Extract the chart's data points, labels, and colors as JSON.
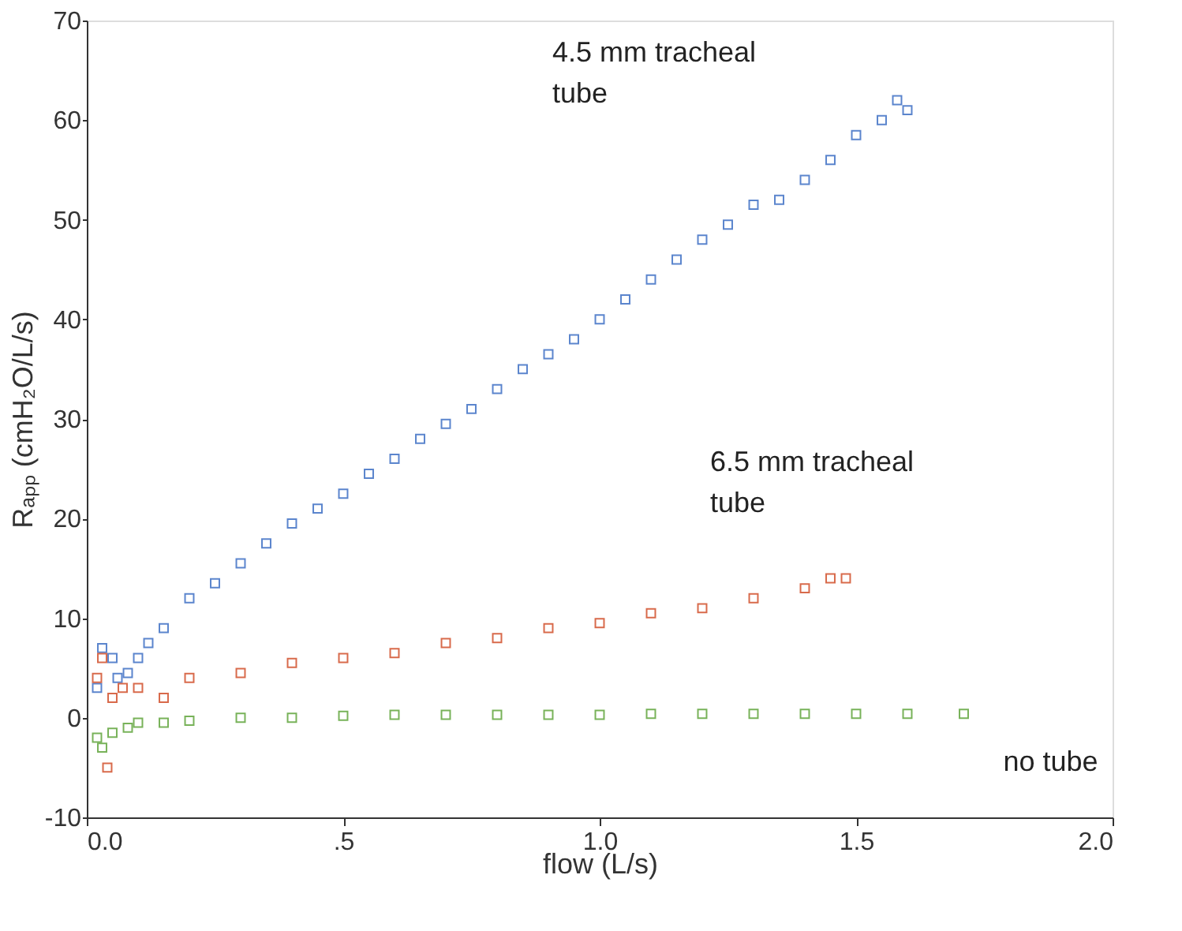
{
  "chart_data": {
    "type": "scatter",
    "xlabel": "flow (L/s)",
    "ylabel": "Rₐₚₚ (cmH₂O/L/s)",
    "xlim": [
      0,
      2
    ],
    "ylim": [
      -10,
      70
    ],
    "xticks": [
      {
        "value": 0,
        "label": "0.0"
      },
      {
        "value": 0.5,
        "label": ".5"
      },
      {
        "value": 1,
        "label": "1.0"
      },
      {
        "value": 1.5,
        "label": "1.5"
      },
      {
        "value": 2,
        "label": "2.0"
      }
    ],
    "yticks": [
      -10,
      0,
      10,
      20,
      30,
      40,
      50,
      60,
      70
    ],
    "grid": false,
    "legend": false,
    "marker": "square",
    "series": [
      {
        "name": "4.5 mm tracheal tube",
        "color": "#4a78c8",
        "x": [
          0.02,
          0.03,
          0.05,
          0.06,
          0.08,
          0.1,
          0.12,
          0.15,
          0.2,
          0.25,
          0.3,
          0.35,
          0.4,
          0.45,
          0.5,
          0.55,
          0.6,
          0.65,
          0.7,
          0.75,
          0.8,
          0.85,
          0.9,
          0.95,
          1.0,
          1.05,
          1.1,
          1.15,
          1.2,
          1.25,
          1.3,
          1.35,
          1.4,
          1.45,
          1.5,
          1.55,
          1.58,
          1.6
        ],
        "values": [
          3,
          7,
          6,
          4,
          4.5,
          6,
          7.5,
          9,
          12,
          13.5,
          15.5,
          17.5,
          19.5,
          21,
          22.5,
          24.5,
          26,
          28,
          29.5,
          31,
          33,
          35,
          36.5,
          38,
          40,
          42,
          44,
          46,
          48,
          49.5,
          51.5,
          52,
          54,
          56,
          58.5,
          60,
          62,
          61
        ]
      },
      {
        "name": "6.5 mm tracheal tube",
        "color": "#d45a38",
        "x": [
          0.02,
          0.03,
          0.04,
          0.05,
          0.07,
          0.1,
          0.15,
          0.2,
          0.3,
          0.4,
          0.5,
          0.6,
          0.7,
          0.8,
          0.9,
          1.0,
          1.1,
          1.2,
          1.3,
          1.4,
          1.45,
          1.48
        ],
        "values": [
          4,
          6,
          -5,
          2,
          3,
          3,
          2,
          4,
          4.5,
          5.5,
          6,
          6.5,
          7.5,
          8,
          9,
          9.5,
          10.5,
          11,
          12,
          13,
          14,
          14
        ]
      },
      {
        "name": "no tube",
        "color": "#6aaa48",
        "x": [
          0.02,
          0.03,
          0.05,
          0.08,
          0.1,
          0.15,
          0.2,
          0.3,
          0.4,
          0.5,
          0.6,
          0.7,
          0.8,
          0.9,
          1.0,
          1.1,
          1.2,
          1.3,
          1.4,
          1.5,
          1.6,
          1.71
        ],
        "values": [
          -2,
          -3,
          -1.5,
          -1,
          -0.5,
          -0.5,
          -0.3,
          0,
          0,
          0.2,
          0.3,
          0.3,
          0.3,
          0.3,
          0.3,
          0.4,
          0.4,
          0.4,
          0.4,
          0.4,
          0.4,
          0.4
        ]
      }
    ]
  }
}
